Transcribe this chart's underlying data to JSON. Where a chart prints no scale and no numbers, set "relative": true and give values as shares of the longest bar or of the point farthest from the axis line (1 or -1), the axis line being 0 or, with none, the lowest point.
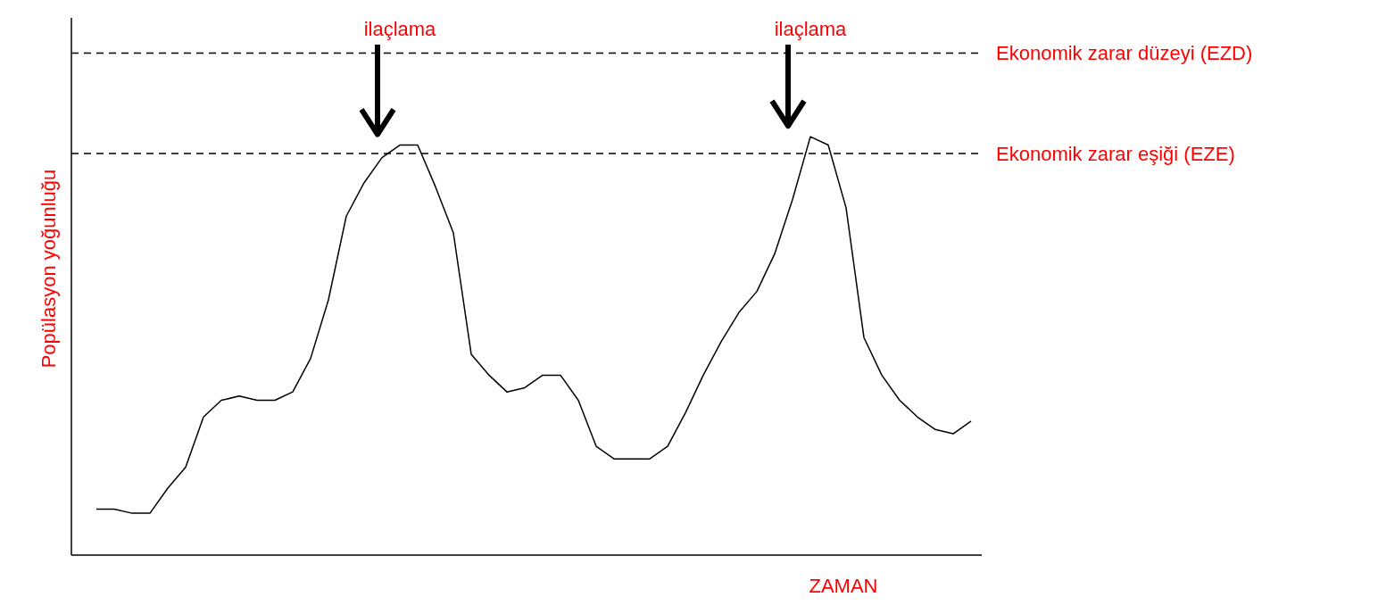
{
  "chart_data": {
    "type": "line",
    "relative": true,
    "ylabel": "Popülasyon yoğunluğu",
    "xlabel": "ZAMAN",
    "categories": [
      null,
      null,
      null,
      null,
      null,
      null,
      null,
      null,
      null,
      null,
      null,
      null,
      null,
      null,
      null,
      null,
      null,
      null,
      null,
      null,
      null,
      null,
      null,
      null,
      null,
      null,
      null,
      null,
      null,
      null,
      null,
      null,
      null,
      null,
      null,
      null,
      null,
      null,
      null,
      null,
      null,
      null,
      null,
      null,
      null,
      null,
      null,
      null,
      null,
      null
    ],
    "series": [
      {
        "color": "#000000",
        "values": [
          0.11,
          0.11,
          0.1,
          0.1,
          0.16,
          0.21,
          0.33,
          0.37,
          0.38,
          0.37,
          0.37,
          0.39,
          0.47,
          0.61,
          0.81,
          0.89,
          0.95,
          0.98,
          0.98,
          0.88,
          0.77,
          0.48,
          0.43,
          0.39,
          0.4,
          0.43,
          0.43,
          0.37,
          0.26,
          0.23,
          0.23,
          0.23,
          0.26,
          0.34,
          0.43,
          0.51,
          0.58,
          0.63,
          0.72,
          0.85,
          1.0,
          0.98,
          0.83,
          0.52,
          0.43,
          0.37,
          0.33,
          0.3,
          0.29,
          0.32
        ]
      }
    ],
    "ref_lines": [
      {
        "axis": "y",
        "value": 1.2,
        "label": "Ekonomik zarar düzeyi (EZD)",
        "color": "#000000",
        "line_style": "dashed"
      },
      {
        "axis": "y",
        "value": 0.96,
        "label": "Ekonomik zarar eşiği (EZE)",
        "color": "#000000",
        "line_style": "dashed"
      }
    ],
    "annotations": [
      "ilaçlama",
      "ilaçlama"
    ],
    "grid": false,
    "legend": false,
    "marker": "none",
    "line_style": "solid"
  }
}
